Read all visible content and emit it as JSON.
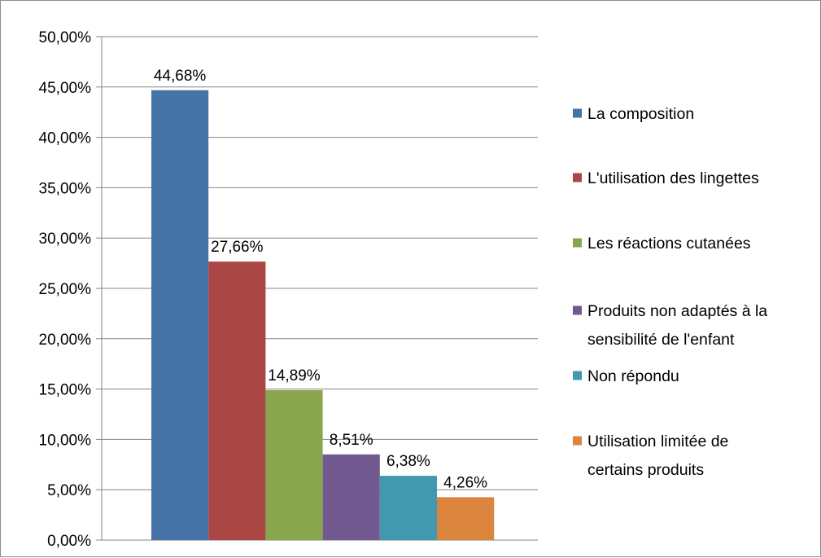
{
  "chart_data": {
    "type": "bar",
    "title": "",
    "xlabel": "",
    "ylabel": "",
    "ylim": [
      0,
      0.5
    ],
    "yticks": [
      "0,00%",
      "5,00%",
      "10,00%",
      "15,00%",
      "20,00%",
      "25,00%",
      "30,00%",
      "35,00%",
      "40,00%",
      "45,00%",
      "50,00%"
    ],
    "grid": true,
    "legend_position": "right",
    "series": [
      {
        "name": "La composition",
        "value": 0.4468,
        "label": "44,68%",
        "color": "#4572A7",
        "legend_lines": [
          "La composition"
        ]
      },
      {
        "name": "L'utilisation des lingettes",
        "value": 0.2766,
        "label": "27,66%",
        "color": "#AA4643",
        "legend_lines": [
          "L'utilisation des lingettes"
        ]
      },
      {
        "name": "Les réactions cutanées",
        "value": 0.1489,
        "label": "14,89%",
        "color": "#89A54E",
        "legend_lines": [
          "Les réactions cutanées"
        ]
      },
      {
        "name": "Produits non adaptés à la sensibilité de l'enfant",
        "value": 0.0851,
        "label": "8,51%",
        "color": "#71588F",
        "legend_lines": [
          "Produits non adaptés à la",
          "sensibilité de l'enfant"
        ]
      },
      {
        "name": "Non répondu",
        "value": 0.0638,
        "label": "6,38%",
        "color": "#4198AF",
        "legend_lines": [
          "Non répondu"
        ]
      },
      {
        "name": "Utilisation limitée de certains produits",
        "value": 0.0426,
        "label": "4,26%",
        "color": "#DB843D",
        "legend_lines": [
          "Utilisation limitée de",
          "certains produits"
        ]
      }
    ]
  }
}
